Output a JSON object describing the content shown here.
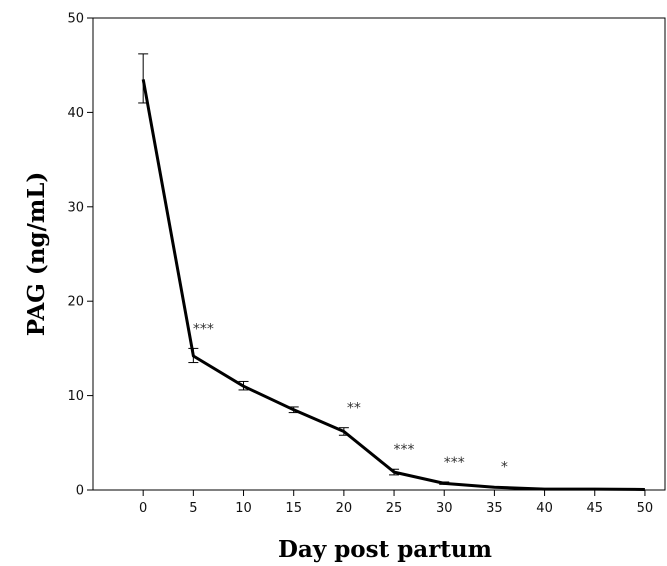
{
  "chart_data": {
    "type": "line",
    "title": "",
    "xlabel": "Day post partum",
    "ylabel": "PAG (ng/mL)",
    "xlim": [
      -5,
      52
    ],
    "ylim": [
      0,
      50
    ],
    "x_ticks": [
      "0",
      "5",
      "10",
      "15",
      "20",
      "25",
      "30",
      "35",
      "40",
      "45",
      "50"
    ],
    "y_ticks": [
      "0",
      "10",
      "20",
      "30",
      "40",
      "50"
    ],
    "grid": false,
    "legend": "none",
    "line_color": "#000000",
    "series": [
      {
        "x": [
          0,
          5,
          10,
          15,
          20,
          25,
          30,
          35,
          40,
          45,
          50
        ],
        "y": [
          43.5,
          14.2,
          11.0,
          8.5,
          6.2,
          1.9,
          0.7,
          0.3,
          0.1,
          0.1,
          0.05
        ],
        "err_low": [
          41.0,
          13.5,
          10.6,
          8.2,
          5.8,
          1.6,
          0.6,
          0.25,
          0.08,
          0.08,
          0.04
        ],
        "err_high": [
          46.2,
          15.0,
          11.5,
          8.8,
          6.6,
          2.2,
          0.85,
          0.35,
          0.12,
          0.12,
          0.06
        ]
      }
    ],
    "significance": [
      {
        "x": 5,
        "label": "***"
      },
      {
        "x": 20,
        "label": "**"
      },
      {
        "x": 25,
        "label": "***"
      },
      {
        "x": 30,
        "label": "***"
      },
      {
        "x": 35,
        "label": "*"
      }
    ]
  }
}
